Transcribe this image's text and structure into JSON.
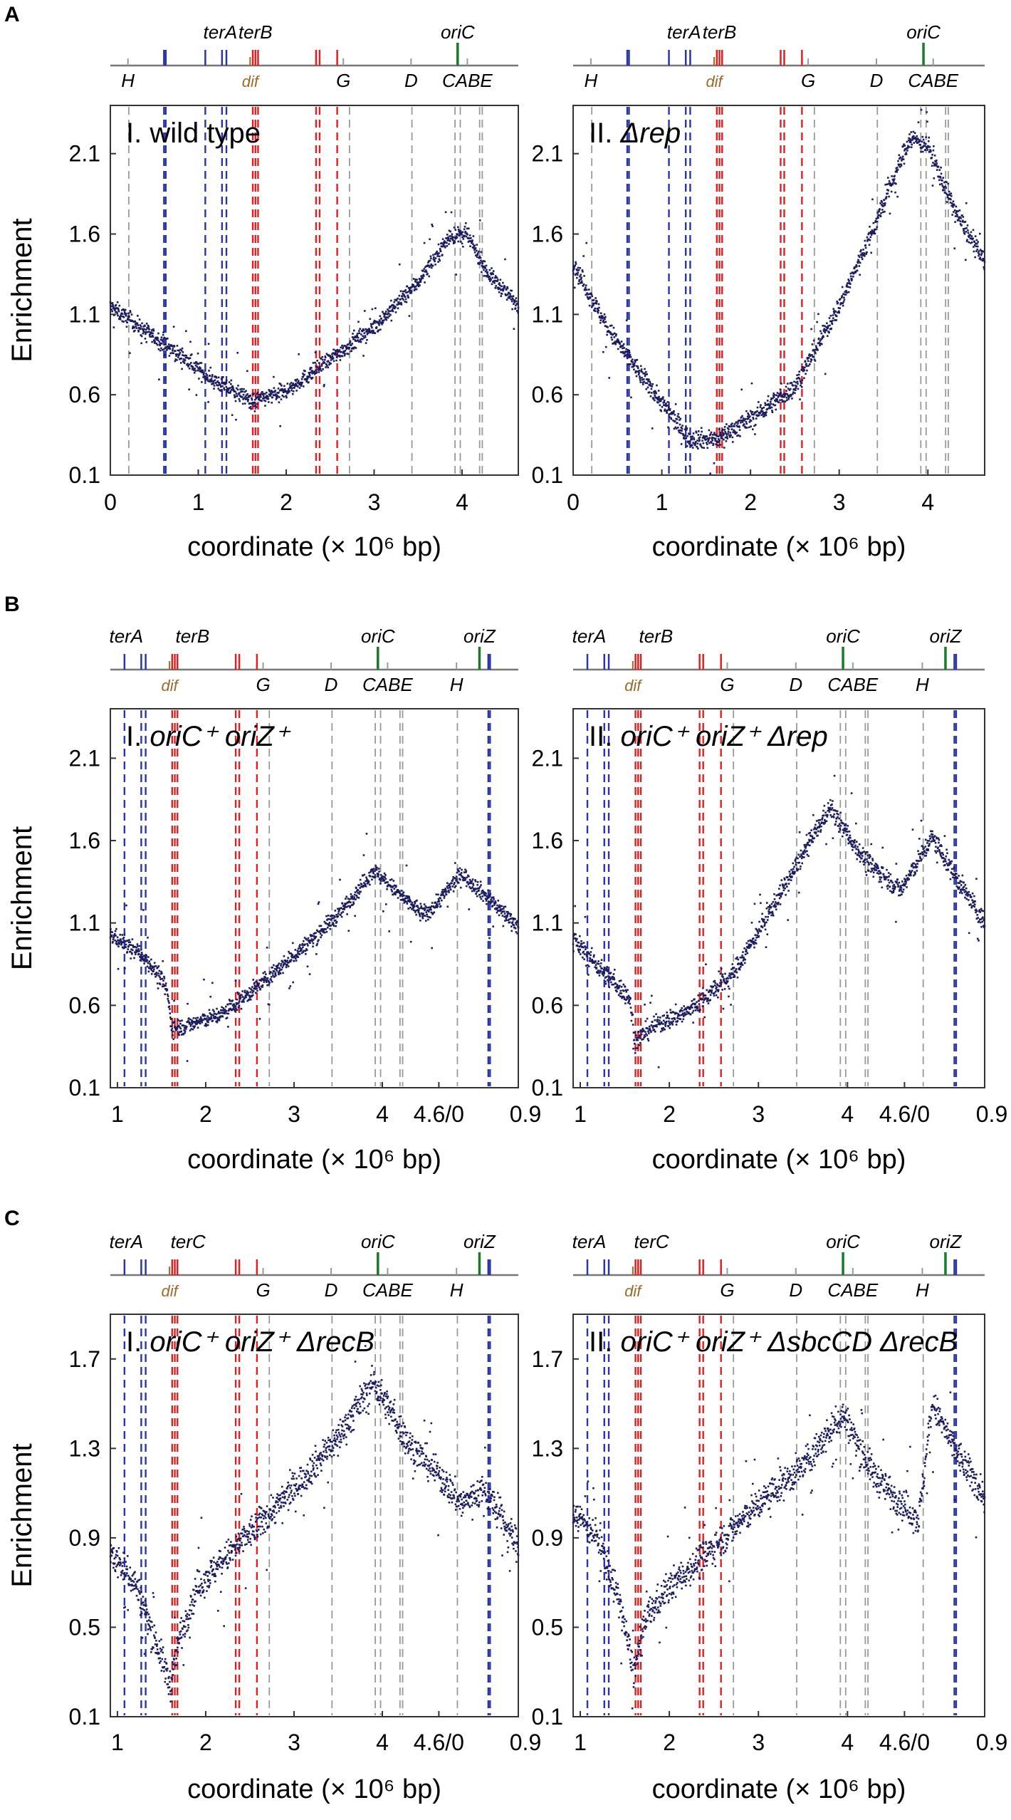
{
  "figure": {
    "panel_letters": [
      "A",
      "B",
      "C"
    ],
    "ylabel": "Enrichment",
    "xlabel": "coordinate (× 10⁶ bp)"
  },
  "colors": {
    "data": "#1b1b5e",
    "blue": "#2a35a6",
    "red": "#e02020",
    "green": "#1a7a2a",
    "grey": "#999999",
    "dif": "#9a6a2a",
    "frame": "#333333"
  },
  "chart_data": [
    {
      "id": "A-I",
      "row": "A",
      "col": 0,
      "type": "scatter",
      "title_numeral": "I.",
      "title_parts": [
        {
          "t": "wild type",
          "i": false
        }
      ],
      "axis": "linear",
      "xticks": [
        {
          "v": 0,
          "l": "0"
        },
        {
          "v": 1,
          "l": "1"
        },
        {
          "v": 2,
          "l": "2"
        },
        {
          "v": 3,
          "l": "3"
        },
        {
          "v": 4,
          "l": "4"
        }
      ],
      "xlim": [
        0,
        4.64
      ],
      "ylim": [
        0.1,
        2.4
      ],
      "yticks": [
        0.1,
        0.6,
        1.1,
        1.6,
        2.1
      ],
      "ytick_labels": [
        "0.1",
        "0.6",
        "1.1",
        "1.6",
        "2.1"
      ],
      "profile": [
        [
          0,
          1.15
        ],
        [
          0.6,
          0.92
        ],
        [
          1.2,
          0.68
        ],
        [
          1.62,
          0.56
        ],
        [
          2.0,
          0.62
        ],
        [
          2.5,
          0.82
        ],
        [
          3.0,
          1.02
        ],
        [
          3.5,
          1.3
        ],
        [
          3.85,
          1.58
        ],
        [
          4.05,
          1.6
        ],
        [
          4.3,
          1.35
        ],
        [
          4.64,
          1.16
        ]
      ],
      "noise": 0.025,
      "lines": {
        "blue": [
          0.61,
          0.63,
          1.08,
          1.27,
          1.32
        ],
        "red": [
          1.62,
          1.65,
          1.68,
          2.34,
          2.38,
          2.58
        ],
        "grey": [
          0.21,
          2.72,
          3.43,
          3.92,
          3.98,
          4.2,
          4.23
        ]
      },
      "map": {
        "labels": [
          {
            "text": "terA",
            "x": 1.25
          },
          {
            "text": "terB",
            "x": 1.65
          },
          {
            "text": "oriC",
            "x": 3.95
          }
        ],
        "below": [
          {
            "text": "H",
            "x": 0.2
          },
          {
            "text": "G",
            "x": 2.65
          },
          {
            "text": "D",
            "x": 3.42
          },
          {
            "text": "CABE",
            "x": 4.06
          }
        ],
        "dif": 1.59
      }
    },
    {
      "id": "A-II",
      "row": "A",
      "col": 1,
      "type": "scatter",
      "title_numeral": "II.",
      "title_parts": [
        {
          "t": "Δrep",
          "i": true
        }
      ],
      "axis": "linear",
      "xticks": [
        {
          "v": 0,
          "l": "0"
        },
        {
          "v": 1,
          "l": "1"
        },
        {
          "v": 2,
          "l": "2"
        },
        {
          "v": 3,
          "l": "3"
        },
        {
          "v": 4,
          "l": "4"
        }
      ],
      "xlim": [
        0,
        4.64
      ],
      "ylim": [
        0.1,
        2.4
      ],
      "yticks": [
        0.1,
        0.6,
        1.1,
        1.6,
        2.1
      ],
      "ytick_labels": [
        "0.1",
        "0.6",
        "1.1",
        "1.6",
        "2.1"
      ],
      "profile": [
        [
          0,
          1.42
        ],
        [
          0.4,
          1.0
        ],
        [
          0.8,
          0.7
        ],
        [
          1.3,
          0.33
        ],
        [
          1.6,
          0.32
        ],
        [
          2.0,
          0.45
        ],
        [
          2.5,
          0.65
        ],
        [
          3.0,
          1.15
        ],
        [
          3.4,
          1.65
        ],
        [
          3.8,
          2.2
        ],
        [
          4.0,
          2.15
        ],
        [
          4.3,
          1.75
        ],
        [
          4.64,
          1.42
        ]
      ],
      "noise": 0.03,
      "lines": {
        "blue": [
          0.61,
          0.63,
          1.08,
          1.27,
          1.32
        ],
        "red": [
          1.62,
          1.65,
          1.68,
          2.34,
          2.38,
          2.58
        ],
        "grey": [
          0.21,
          2.72,
          3.43,
          3.92,
          3.98,
          4.2,
          4.23
        ]
      },
      "map": {
        "labels": [
          {
            "text": "terA",
            "x": 1.25
          },
          {
            "text": "terB",
            "x": 1.65
          },
          {
            "text": "oriC",
            "x": 3.95
          }
        ],
        "below": [
          {
            "text": "H",
            "x": 0.2
          },
          {
            "text": "G",
            "x": 2.65
          },
          {
            "text": "D",
            "x": 3.42
          },
          {
            "text": "CABE",
            "x": 4.06
          }
        ],
        "dif": 1.59
      }
    },
    {
      "id": "B-I",
      "row": "B",
      "col": 0,
      "type": "scatter",
      "title_numeral": "I.",
      "title_parts": [
        {
          "t": "oriC⁺ oriZ⁺",
          "i": true
        }
      ],
      "axis": "shifted",
      "xticks": [
        {
          "v": 1,
          "l": "1"
        },
        {
          "v": 2,
          "l": "2"
        },
        {
          "v": 3,
          "l": "3"
        },
        {
          "v": 4,
          "l": "4"
        },
        {
          "v": 4.64,
          "l": "4.6/0"
        },
        {
          "v": 5.54,
          "l": "0.9"
        }
      ],
      "xlim": [
        0.92,
        5.54
      ],
      "ylim": [
        0.1,
        2.4
      ],
      "yticks": [
        0.1,
        0.6,
        1.1,
        1.6,
        2.1
      ],
      "ytick_labels": [
        "0.1",
        "0.6",
        "1.1",
        "1.6",
        "2.1"
      ],
      "profile": [
        [
          0.92,
          1.03
        ],
        [
          1.3,
          0.9
        ],
        [
          1.55,
          0.72
        ],
        [
          1.62,
          0.46
        ],
        [
          1.8,
          0.48
        ],
        [
          2.2,
          0.55
        ],
        [
          2.6,
          0.72
        ],
        [
          3.0,
          0.9
        ],
        [
          3.5,
          1.15
        ],
        [
          3.9,
          1.42
        ],
        [
          4.3,
          1.22
        ],
        [
          4.5,
          1.15
        ],
        [
          4.9,
          1.4
        ],
        [
          5.2,
          1.25
        ],
        [
          5.54,
          1.08
        ]
      ],
      "noise": 0.025,
      "lines": {
        "blue": [
          1.08,
          1.27,
          1.32,
          5.2,
          5.22
        ],
        "red": [
          1.62,
          1.65,
          1.68,
          2.34,
          2.38,
          2.58
        ],
        "grey": [
          2.72,
          3.43,
          3.92,
          3.98,
          4.2,
          4.23,
          4.85
        ]
      },
      "map": {
        "labels": [
          {
            "text": "terA",
            "x": 1.1
          },
          {
            "text": "terB",
            "x": 1.85
          },
          {
            "text": "oriC",
            "x": 3.95
          },
          {
            "text": "oriZ",
            "x": 5.1
          }
        ],
        "below": [
          {
            "text": "G",
            "x": 2.65
          },
          {
            "text": "D",
            "x": 3.42
          },
          {
            "text": "CABE",
            "x": 4.06
          },
          {
            "text": "H",
            "x": 4.84
          }
        ],
        "dif": 1.59
      }
    },
    {
      "id": "B-II",
      "row": "B",
      "col": 1,
      "type": "scatter",
      "title_numeral": "II.",
      "title_parts": [
        {
          "t": "oriC⁺ oriZ⁺ Δrep",
          "i": true
        }
      ],
      "axis": "shifted",
      "xticks": [
        {
          "v": 1,
          "l": "1"
        },
        {
          "v": 2,
          "l": "2"
        },
        {
          "v": 3,
          "l": "3"
        },
        {
          "v": 4,
          "l": "4"
        },
        {
          "v": 4.64,
          "l": "4.6/0"
        },
        {
          "v": 5.54,
          "l": "0.9"
        }
      ],
      "xlim": [
        0.92,
        5.54
      ],
      "ylim": [
        0.1,
        2.4
      ],
      "yticks": [
        0.1,
        0.6,
        1.1,
        1.6,
        2.1
      ],
      "ytick_labels": [
        "0.1",
        "0.6",
        "1.1",
        "1.6",
        "2.1"
      ],
      "profile": [
        [
          0.92,
          1.0
        ],
        [
          1.3,
          0.78
        ],
        [
          1.55,
          0.65
        ],
        [
          1.62,
          0.38
        ],
        [
          1.8,
          0.47
        ],
        [
          2.2,
          0.56
        ],
        [
          2.7,
          0.78
        ],
        [
          3.0,
          1.05
        ],
        [
          3.4,
          1.42
        ],
        [
          3.8,
          1.8
        ],
        [
          4.2,
          1.48
        ],
        [
          4.6,
          1.3
        ],
        [
          4.95,
          1.62
        ],
        [
          5.25,
          1.35
        ],
        [
          5.54,
          1.1
        ]
      ],
      "noise": 0.03,
      "lines": {
        "blue": [
          1.08,
          1.27,
          1.32,
          5.2,
          5.22
        ],
        "red": [
          1.62,
          1.65,
          1.68,
          2.34,
          2.38,
          2.58
        ],
        "grey": [
          2.72,
          3.43,
          3.92,
          3.98,
          4.2,
          4.23,
          4.85
        ]
      },
      "map": {
        "labels": [
          {
            "text": "terA",
            "x": 1.1
          },
          {
            "text": "terB",
            "x": 1.85
          },
          {
            "text": "oriC",
            "x": 3.95
          },
          {
            "text": "oriZ",
            "x": 5.1
          }
        ],
        "below": [
          {
            "text": "G",
            "x": 2.65
          },
          {
            "text": "D",
            "x": 3.42
          },
          {
            "text": "CABE",
            "x": 4.06
          },
          {
            "text": "H",
            "x": 4.84
          }
        ],
        "dif": 1.59
      }
    },
    {
      "id": "C-I",
      "row": "C",
      "col": 0,
      "type": "scatter",
      "title_numeral": "I.",
      "title_parts": [
        {
          "t": "oriC⁺ oriZ⁺ ΔrecB",
          "i": true
        }
      ],
      "axis": "shifted",
      "xticks": [
        {
          "v": 1,
          "l": "1"
        },
        {
          "v": 2,
          "l": "2"
        },
        {
          "v": 3,
          "l": "3"
        },
        {
          "v": 4,
          "l": "4"
        },
        {
          "v": 4.64,
          "l": "4.6/0"
        },
        {
          "v": 5.54,
          "l": "0.9"
        }
      ],
      "xlim": [
        0.92,
        5.54
      ],
      "ylim": [
        0.1,
        1.9
      ],
      "yticks": [
        0.1,
        0.5,
        0.9,
        1.3,
        1.7
      ],
      "ytick_labels": [
        "0.1",
        "0.5",
        "0.9",
        "1.3",
        "1.7"
      ],
      "profile": [
        [
          0.92,
          0.83
        ],
        [
          1.2,
          0.7
        ],
        [
          1.45,
          0.42
        ],
        [
          1.6,
          0.24
        ],
        [
          1.7,
          0.45
        ],
        [
          1.9,
          0.68
        ],
        [
          2.4,
          0.88
        ],
        [
          3.0,
          1.12
        ],
        [
          3.5,
          1.35
        ],
        [
          3.9,
          1.6
        ],
        [
          4.3,
          1.32
        ],
        [
          4.6,
          1.2
        ],
        [
          4.9,
          1.05
        ],
        [
          5.15,
          1.12
        ],
        [
          5.54,
          0.86
        ]
      ],
      "noise": 0.035,
      "lines": {
        "blue": [
          1.08,
          1.27,
          1.32,
          5.2,
          5.22
        ],
        "red": [
          1.62,
          1.65,
          1.68,
          2.34,
          2.38,
          2.58
        ],
        "grey": [
          2.72,
          3.43,
          3.92,
          3.98,
          4.2,
          4.23,
          4.85
        ]
      },
      "map": {
        "labels": [
          {
            "text": "terA",
            "x": 1.1
          },
          {
            "text": "terC",
            "x": 1.8
          },
          {
            "text": "oriC",
            "x": 3.95
          },
          {
            "text": "oriZ",
            "x": 5.1
          }
        ],
        "below": [
          {
            "text": "G",
            "x": 2.65
          },
          {
            "text": "D",
            "x": 3.42
          },
          {
            "text": "CABE",
            "x": 4.06
          },
          {
            "text": "H",
            "x": 4.84
          }
        ],
        "dif": 1.59
      }
    },
    {
      "id": "C-II",
      "row": "C",
      "col": 1,
      "type": "scatter",
      "title_numeral": "II.",
      "title_parts": [
        {
          "t": "oriC⁺ oriZ⁺ ΔsbcCD ΔrecB",
          "i": true
        }
      ],
      "axis": "shifted",
      "xticks": [
        {
          "v": 1,
          "l": "1"
        },
        {
          "v": 2,
          "l": "2"
        },
        {
          "v": 3,
          "l": "3"
        },
        {
          "v": 4,
          "l": "4"
        },
        {
          "v": 4.64,
          "l": "4.6/0"
        },
        {
          "v": 5.54,
          "l": "0.9"
        }
      ],
      "xlim": [
        0.92,
        5.54
      ],
      "ylim": [
        0.1,
        1.9
      ],
      "yticks": [
        0.1,
        0.5,
        0.9,
        1.3,
        1.7
      ],
      "ytick_labels": [
        "0.1",
        "0.5",
        "0.9",
        "1.3",
        "1.7"
      ],
      "profile": [
        [
          0.92,
          1.02
        ],
        [
          1.2,
          0.9
        ],
        [
          1.45,
          0.6
        ],
        [
          1.6,
          0.3
        ],
        [
          1.75,
          0.55
        ],
        [
          2.0,
          0.68
        ],
        [
          2.5,
          0.86
        ],
        [
          3.0,
          1.05
        ],
        [
          3.5,
          1.22
        ],
        [
          3.95,
          1.45
        ],
        [
          4.3,
          1.18
        ],
        [
          4.8,
          0.98
        ],
        [
          4.95,
          1.5
        ],
        [
          5.2,
          1.3
        ],
        [
          5.54,
          1.08
        ]
      ],
      "noise": 0.035,
      "lines": {
        "blue": [
          1.08,
          1.27,
          1.32,
          5.2,
          5.22
        ],
        "red": [
          1.62,
          1.65,
          1.68,
          2.34,
          2.38,
          2.58
        ],
        "grey": [
          2.72,
          3.43,
          3.92,
          3.98,
          4.2,
          4.23,
          4.85
        ]
      },
      "map": {
        "labels": [
          {
            "text": "terA",
            "x": 1.1
          },
          {
            "text": "terC",
            "x": 1.8
          },
          {
            "text": "oriC",
            "x": 3.95
          },
          {
            "text": "oriZ",
            "x": 5.1
          }
        ],
        "below": [
          {
            "text": "G",
            "x": 2.65
          },
          {
            "text": "D",
            "x": 3.42
          },
          {
            "text": "CABE",
            "x": 4.06
          },
          {
            "text": "H",
            "x": 4.84
          }
        ],
        "dif": 1.59
      }
    }
  ]
}
